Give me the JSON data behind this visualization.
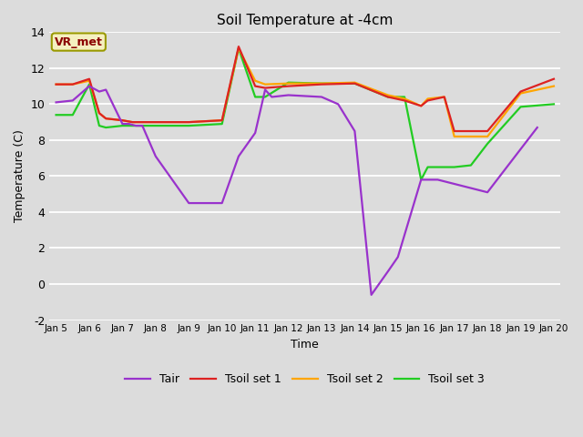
{
  "title": "Soil Temperature at -4cm",
  "xlabel": "Time",
  "ylabel": "Temperature (C)",
  "ylim": [
    -2,
    14
  ],
  "background_color": "#dcdcdc",
  "annotation_text": "VR_met",
  "annotation_color": "#8B0000",
  "annotation_bg": "#f5f0c0",
  "annotation_edge": "#999900",
  "x_labels": [
    "Jan 5",
    "Jan 6",
    "Jan 7",
    "Jan 8",
    "Jan 9",
    "Jan 10",
    "Jan 11",
    "Jan 12",
    "Jan 13",
    "Jan 14",
    "Jan 15",
    "Jan 16",
    "Jan 17",
    "Jan 18",
    "Jan 19",
    "Jan 20"
  ],
  "tair_x": [
    0,
    0.5,
    1.0,
    1.3,
    1.5,
    2.0,
    2.2,
    2.4,
    2.6,
    3.0,
    4.0,
    5.0,
    5.5,
    6.0,
    6.3,
    6.5,
    7.0,
    8.0,
    8.5,
    9.0,
    9.5,
    10.0,
    10.3,
    11.0,
    11.5,
    13.0,
    14.5
  ],
  "tair_y": [
    10.1,
    10.2,
    11.0,
    10.7,
    10.8,
    8.9,
    8.9,
    8.8,
    8.8,
    7.1,
    4.5,
    4.5,
    7.1,
    8.4,
    10.8,
    10.4,
    10.5,
    10.4,
    10.0,
    8.5,
    -0.6,
    0.7,
    1.5,
    5.8,
    5.8,
    5.1,
    8.7
  ],
  "ts1_x": [
    0,
    0.5,
    1.0,
    1.3,
    1.5,
    2.0,
    2.3,
    3.0,
    4.0,
    5.0,
    5.5,
    6.0,
    6.3,
    7.0,
    8.0,
    9.0,
    10.0,
    10.5,
    11.0,
    11.2,
    11.7,
    12.0,
    13.0,
    14.0,
    15.0
  ],
  "ts1_y": [
    11.1,
    11.1,
    11.4,
    9.5,
    9.2,
    9.1,
    9.0,
    9.0,
    9.0,
    9.1,
    13.2,
    11.0,
    10.9,
    11.0,
    11.1,
    11.15,
    10.4,
    10.2,
    9.9,
    10.2,
    10.4,
    8.5,
    8.5,
    10.7,
    11.4
  ],
  "ts2_x": [
    0,
    0.5,
    1.0,
    1.3,
    1.5,
    2.0,
    2.3,
    3.0,
    4.0,
    5.0,
    5.5,
    6.0,
    6.3,
    7.0,
    8.0,
    9.0,
    10.0,
    10.5,
    11.0,
    11.2,
    11.7,
    12.0,
    13.0,
    14.0,
    15.0
  ],
  "ts2_y": [
    11.1,
    11.1,
    11.3,
    9.5,
    9.2,
    9.1,
    9.0,
    9.0,
    9.0,
    9.1,
    13.1,
    11.3,
    11.1,
    11.15,
    11.15,
    11.2,
    10.5,
    10.3,
    9.9,
    10.3,
    10.4,
    8.2,
    8.2,
    10.6,
    11.0
  ],
  "ts3_x": [
    0,
    0.5,
    1.0,
    1.3,
    1.5,
    2.0,
    2.3,
    3.0,
    4.0,
    5.0,
    5.5,
    6.0,
    6.3,
    7.0,
    8.0,
    9.0,
    10.0,
    10.5,
    11.0,
    11.2,
    11.7,
    12.0,
    12.5,
    13.0,
    14.0,
    15.0
  ],
  "ts3_y": [
    9.4,
    9.4,
    11.1,
    8.8,
    8.7,
    8.8,
    8.8,
    8.8,
    8.8,
    8.9,
    13.1,
    10.4,
    10.4,
    11.2,
    11.15,
    11.15,
    10.4,
    10.4,
    5.8,
    6.5,
    6.5,
    6.5,
    6.6,
    7.8,
    9.85,
    10.0
  ],
  "tair_color": "#9932CC",
  "ts1_color": "#DD2222",
  "ts2_color": "#FFA500",
  "ts3_color": "#22CC22",
  "linewidth": 1.6
}
